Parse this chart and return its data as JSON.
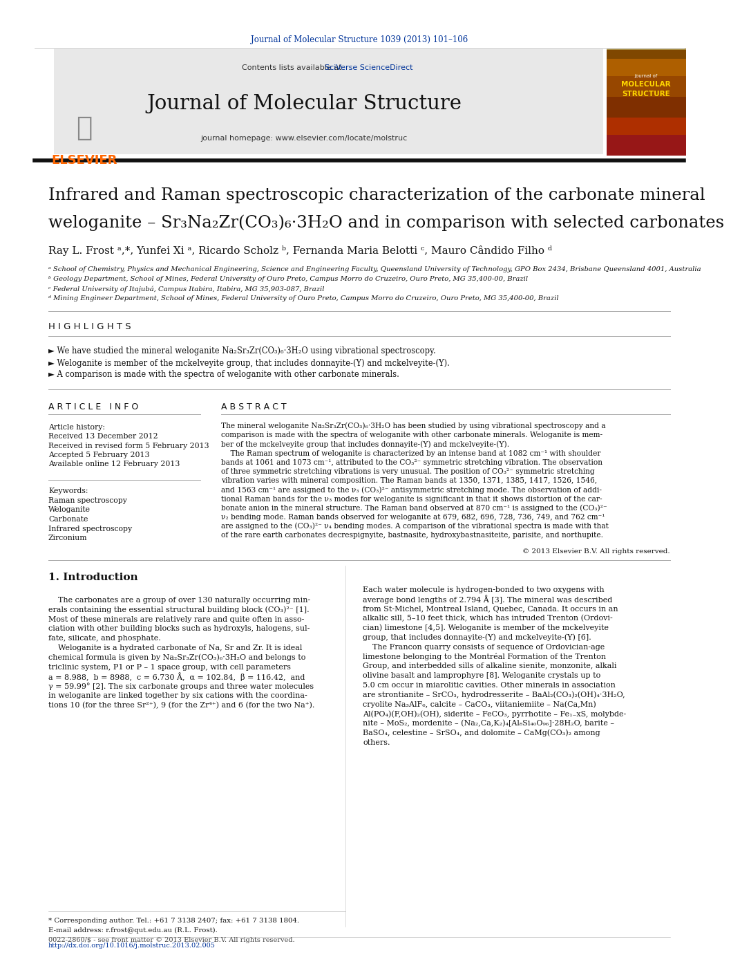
{
  "page_bg": "#ffffff",
  "journal_ref": "Journal of Molecular Structure 1039 (2013) 101–106",
  "journal_ref_color": "#003399",
  "contents_text": "Contents lists available at ",
  "sciverse_text": "SciVerse ScienceDirect",
  "sciverse_color": "#003399",
  "journal_title": "Journal of Molecular Structure",
  "homepage_text": "journal homepage: www.elsevier.com/locate/molstruc",
  "elsevier_color": "#FF6600",
  "header_bg": "#e8e8e8",
  "article_title_line1": "Infrared and Raman spectroscopic characterization of the carbonate mineral",
  "article_title_line2": "weloganite – Sr₃Na₂Zr(CO₃)₆·3H₂O and in comparison with selected carbonates",
  "authors": "Ray L. Frost ᵃ,*, Yunfei Xi ᵃ, Ricardo Scholz ᵇ, Fernanda Maria Belotti ᶜ, Mauro Cândido Filho ᵈ",
  "affil_a": "ᵃ School of Chemistry, Physics and Mechanical Engineering, Science and Engineering Faculty, Queensland University of Technology, GPO Box 2434, Brisbane Queensland 4001, Australia",
  "affil_b": "ᵇ Geology Department, School of Mines, Federal University of Ouro Preto, Campus Morro do Cruzeiro, Ouro Preto, MG 35,400-00, Brazil",
  "affil_c": "ᶜ Federal University of Itajubá, Campus Itabira, Itabira, MG 35,903-087, Brazil",
  "affil_d": "ᵈ Mining Engineer Department, School of Mines, Federal University of Ouro Preto, Campus Morro do Cruzeiro, Ouro Preto, MG 35,400-00, Brazil",
  "highlights_title": "H I G H L I G H T S",
  "highlight1": "► We have studied the mineral weloganite Na₂Sr₃Zr(CO₃)₆·3H₂O using vibrational spectroscopy.",
  "highlight2": "► Weloganite is member of the mckelveyite group, that includes donnayite-(Y) and mckelveyite-(Y).",
  "highlight3": "► A comparison is made with the spectra of weloganite with other carbonate minerals.",
  "article_info_title": "A R T I C L E   I N F O",
  "article_history": "Article history:",
  "received": "Received 13 December 2012",
  "received_revised": "Received in revised form 5 February 2013",
  "accepted": "Accepted 5 February 2013",
  "available": "Available online 12 February 2013",
  "keywords_title": "Keywords:",
  "kw1": "Raman spectroscopy",
  "kw2": "Weloganite",
  "kw3": "Carbonate",
  "kw4": "Infrared spectroscopy",
  "kw5": "Zirconium",
  "abstract_title": "A B S T R A C T",
  "copyright": "© 2013 Elsevier B.V. All rights reserved.",
  "intro_title": "1. Introduction",
  "footnote_corr": "* Corresponding author. Tel.: +61 7 3138 2407; fax: +61 7 3138 1804.",
  "footnote_email": "E-mail address: r.frost@qut.edu.au (R.L. Frost).",
  "footer_text1": "0022-2860/$ - see front matter © 2013 Elsevier B.V. All rights reserved.",
  "footer_text2": "http://dx.doi.org/10.1016/j.molstruc.2013.02.005",
  "abstract_lines": [
    "The mineral weloganite Na₂Sr₃Zr(CO₃)₆·3H₂O has been studied by using vibrational spectroscopy and a",
    "comparison is made with the spectra of weloganite with other carbonate minerals. Weloganite is mem-",
    "ber of the mckelveyite group that includes donnayite-(Y) and mckelveyite-(Y).",
    "    The Raman spectrum of weloganite is characterized by an intense band at 1082 cm⁻¹ with shoulder",
    "bands at 1061 and 1073 cm⁻¹, attributed to the CO₃²⁻ symmetric stretching vibration. The observation",
    "of three symmetric stretching vibrations is very unusual. The position of CO₃²⁻ symmetric stretching",
    "vibration varies with mineral composition. The Raman bands at 1350, 1371, 1385, 1417, 1526, 1546,",
    "and 1563 cm⁻¹ are assigned to the ν₃ (CO₃)²⁻ antisymmetric stretching mode. The observation of addi-",
    "tional Raman bands for the ν₃ modes for weloganite is significant in that it shows distortion of the car-",
    "bonate anion in the mineral structure. The Raman band observed at 870 cm⁻¹ is assigned to the (CO₃)²⁻",
    "ν₂ bending mode. Raman bands observed for weloganite at 679, 682, 696, 728, 736, 749, and 762 cm⁻¹",
    "are assigned to the (CO₃)²⁻ ν₄ bending modes. A comparison of the vibrational spectra is made with that",
    "of the rare earth carbonates decrespignyite, bastnasite, hydroxybastnasiteite, parisite, and northupite."
  ],
  "intro_left_lines": [
    "    The carbonates are a group of over 130 naturally occurring min-",
    "erals containing the essential structural building block (CO₃)²⁻ [1].",
    "Most of these minerals are relatively rare and quite often in asso-",
    "ciation with other building blocks such as hydroxyls, halogens, sul-",
    "fate, silicate, and phosphate.",
    "    Weloganite is a hydrated carbonate of Na, Sr and Zr. It is ideal",
    "chemical formula is given by Na₂Sr₃Zr(CO₃)₆·3H₂O and belongs to",
    "triclinic system, P1 or P – 1 space group, with cell parameters",
    "a = 8.988,  b = 8988,  c = 6.730 Å,  α = 102.84,  β = 116.42,  and",
    "γ = 59.99° [2]. The six carbonate groups and three water molecules",
    "in weloganite are linked together by six cations with the coordina-",
    "tions 10 (for the three Sr²⁺), 9 (for the Zr⁴⁺) and 6 (for the two Na⁺)."
  ],
  "intro_right_lines": [
    "Each water molecule is hydrogen-bonded to two oxygens with",
    "average bond lengths of 2.794 Å [3]. The mineral was described",
    "from St-Michel, Montreal Island, Quebec, Canada. It occurs in an",
    "alkalic sill, 5–10 feet thick, which has intruded Trenton (Ordovi-",
    "cian) limestone [4,5]. Weloganite is member of the mckelveyite",
    "group, that includes donnayite-(Y) and mckelveyite-(Y) [6].",
    "    The Francon quarry consists of sequence of Ordovician-age",
    "limestone belonging to the Montréal Formation of the Trenton",
    "Group, and interbedded sills of alkaline sienite, monzonite, alkali",
    "olivine basalt and lamprophyre [8]. Weloganite crystals up to",
    "5.0 cm occur in miarolitic cavities. Other minerals in association",
    "are strontianite – SrCO₃, hydrodresserite – BaAl₂(CO₃)₂(OH)₄·3H₂O,",
    "cryolite Na₃AlF₆, calcite – CaCO₃, viitaniemiite – Na(Ca,Mn)",
    "Al(PO₄)(F,OH)₂(OH), siderite – FeCO₃, pyrrhotite – Fe₁₋xS, molybde-",
    "nite – MoS₂, mordenite – (Na₂,Ca,K₂)₄[Al₈Si₄₀O₉₆]·28H₂O, barite –",
    "BaSO₄, celestine – SrSO₄, and dolomite – CaMg(CO₃)₂ among",
    "others."
  ]
}
